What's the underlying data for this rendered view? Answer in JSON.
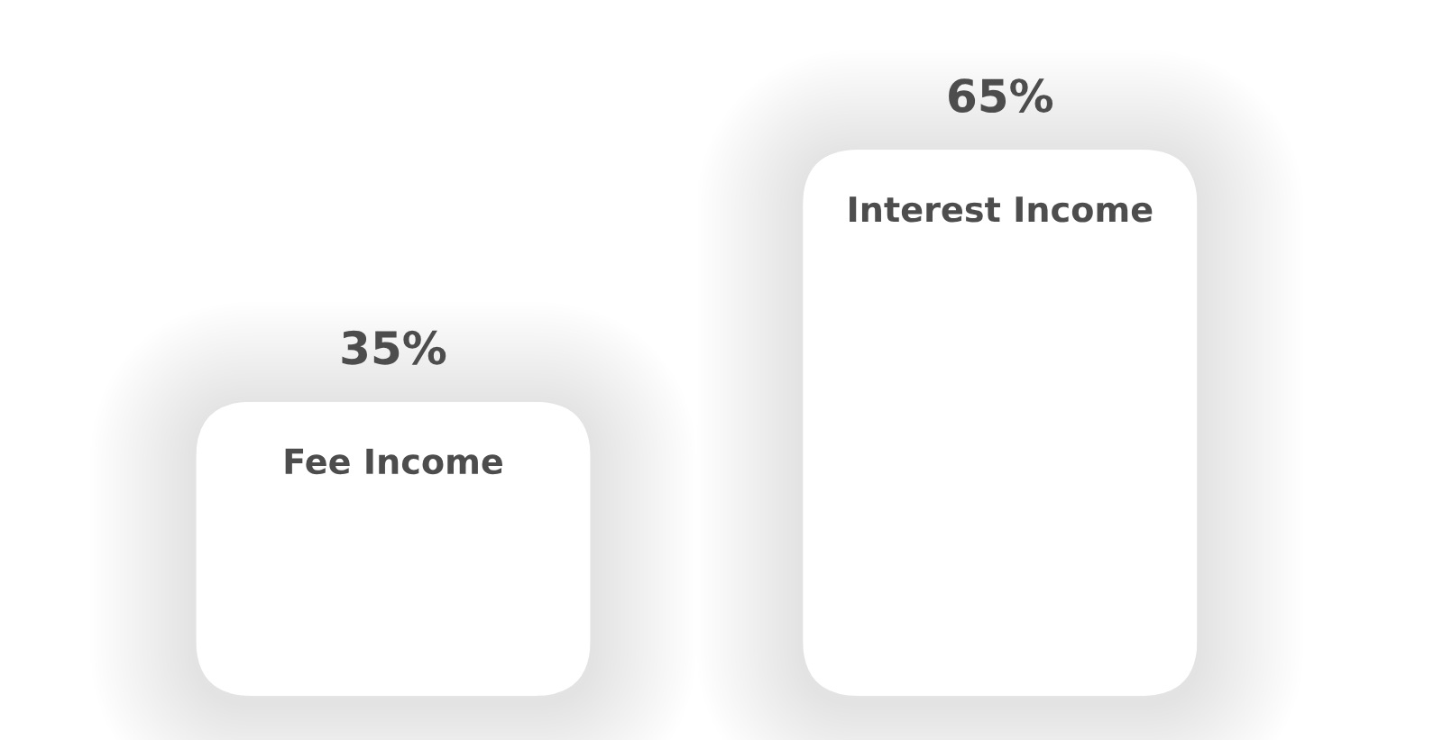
{
  "chart_data": {
    "type": "bar",
    "categories": [
      "Fee Income",
      "Interest Income"
    ],
    "values": [
      35,
      65
    ],
    "color": "#ffffff",
    "value_labels": [
      "35%",
      "65%"
    ],
    "tick_labels": "x"
  }
}
